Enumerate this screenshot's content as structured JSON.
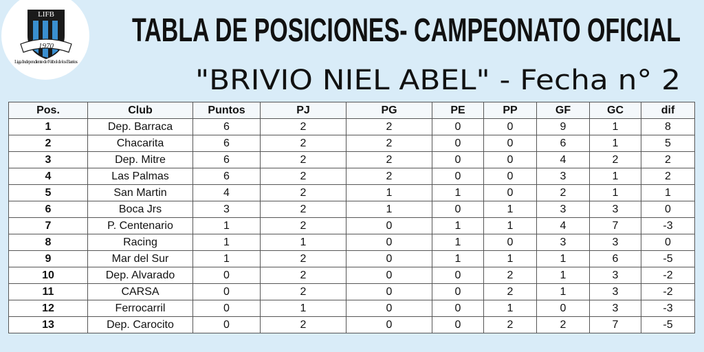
{
  "logo": {
    "acronym": "LIFB",
    "year": "1970",
    "name": "Liga Independiente de Fútbol de los Barrios"
  },
  "header": {
    "title": "TABLA DE POSICIONES- CAMPEONATO OFICIAL",
    "subtitle": "\"BRIVIO NIEL ABEL\" - Fecha n° 2"
  },
  "table": {
    "columns": [
      "Pos.",
      "Club",
      "Puntos",
      "PJ",
      "PG",
      "PE",
      "PP",
      "GF",
      "GC",
      "dif"
    ],
    "rows": [
      [
        1,
        "Dep. Barraca",
        6,
        2,
        2,
        0,
        0,
        9,
        1,
        8
      ],
      [
        2,
        "Chacarita",
        6,
        2,
        2,
        0,
        0,
        6,
        1,
        5
      ],
      [
        3,
        "Dep. Mitre",
        6,
        2,
        2,
        0,
        0,
        4,
        2,
        2
      ],
      [
        4,
        "Las Palmas",
        6,
        2,
        2,
        0,
        0,
        3,
        1,
        2
      ],
      [
        5,
        "San Martin",
        4,
        2,
        1,
        1,
        0,
        2,
        1,
        1
      ],
      [
        6,
        "Boca Jrs",
        3,
        2,
        1,
        0,
        1,
        3,
        3,
        0
      ],
      [
        7,
        "P. Centenario",
        1,
        2,
        0,
        1,
        1,
        4,
        7,
        -3
      ],
      [
        8,
        "Racing",
        1,
        1,
        0,
        1,
        0,
        3,
        3,
        0
      ],
      [
        9,
        "Mar del Sur",
        1,
        2,
        0,
        1,
        1,
        1,
        6,
        -5
      ],
      [
        10,
        "Dep. Alvarado",
        0,
        2,
        0,
        0,
        2,
        1,
        3,
        -2
      ],
      [
        11,
        "CARSA",
        0,
        2,
        0,
        0,
        2,
        1,
        3,
        -2
      ],
      [
        12,
        "Ferrocarril",
        0,
        1,
        0,
        0,
        1,
        0,
        3,
        -3
      ],
      [
        13,
        "Dep. Carocito",
        0,
        2,
        0,
        0,
        2,
        2,
        7,
        -5
      ]
    ]
  }
}
